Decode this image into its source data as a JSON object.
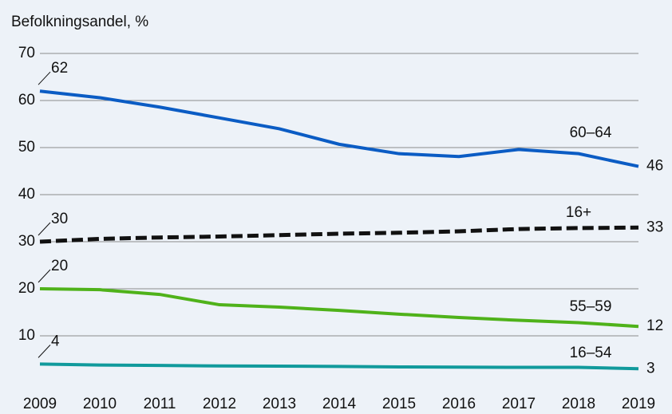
{
  "chart_data": {
    "type": "line",
    "subtitle": "Befolkningsandel, %",
    "x": [
      2009,
      2010,
      2011,
      2012,
      2013,
      2014,
      2015,
      2016,
      2017,
      2018,
      2019
    ],
    "xlim": [
      2009,
      2019
    ],
    "xticks": [
      2009,
      2010,
      2011,
      2012,
      2013,
      2014,
      2015,
      2016,
      2017,
      2018,
      2019
    ],
    "ylim": [
      0,
      70
    ],
    "yticks": [
      10,
      20,
      30,
      40,
      50,
      60,
      70
    ],
    "grid": true,
    "series": [
      {
        "name": "60–64",
        "color": "#0b5cc4",
        "values": [
          62,
          60.6,
          58.6,
          56.3,
          54,
          50.7,
          48.7,
          48.1,
          49.6,
          48.7,
          46
        ]
      },
      {
        "name": "16+",
        "color": "#111111",
        "dashed": true,
        "values": [
          30,
          30.6,
          30.9,
          31.1,
          31.4,
          31.7,
          31.9,
          32.2,
          32.7,
          32.9,
          33
        ]
      },
      {
        "name": "55–59",
        "color": "#4fb21a",
        "values": [
          20,
          19.8,
          18.8,
          16.6,
          16.1,
          15.4,
          14.6,
          13.9,
          13.3,
          12.8,
          12
        ]
      },
      {
        "name": "16–54",
        "color": "#119a9c",
        "values": [
          4,
          3.8,
          3.7,
          3.6,
          3.55,
          3.5,
          3.4,
          3.35,
          3.3,
          3.3,
          3
        ]
      }
    ]
  }
}
